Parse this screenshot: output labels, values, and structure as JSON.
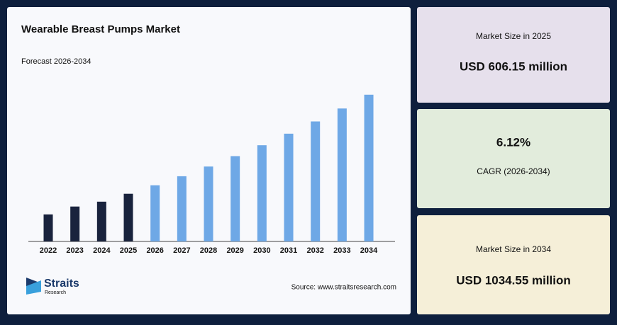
{
  "chart_data": {
    "type": "bar",
    "title": "Wearable Breast Pumps Market",
    "subtitle": "Forecast 2026-2034",
    "categories": [
      "2022",
      "2023",
      "2024",
      "2025",
      "2026",
      "2027",
      "2028",
      "2029",
      "2030",
      "2031",
      "2032",
      "2033",
      "2034"
    ],
    "values": [
      517,
      551,
      572,
      606.15,
      643,
      682,
      724,
      769,
      816,
      866,
      919,
      975,
      1034.55
    ],
    "colors": [
      "#19233d",
      "#19233d",
      "#19233d",
      "#19233d",
      "#6ea8e6",
      "#6ea8e6",
      "#6ea8e6",
      "#6ea8e6",
      "#6ea8e6",
      "#6ea8e6",
      "#6ea8e6",
      "#6ea8e6",
      "#6ea8e6"
    ],
    "ylim": [
      400,
      1040
    ],
    "source": "Source: www.straitsresearch.com"
  },
  "cards": [
    {
      "label": "Market Size in 2025",
      "value": "USD 606.15 million"
    },
    {
      "label": "CAGR (2026-2034)",
      "value": "6.12%"
    },
    {
      "label": "Market Size in 2034",
      "value": "USD 1034.55 million"
    }
  ],
  "logo": {
    "name": "Straits",
    "sub": "Research"
  }
}
